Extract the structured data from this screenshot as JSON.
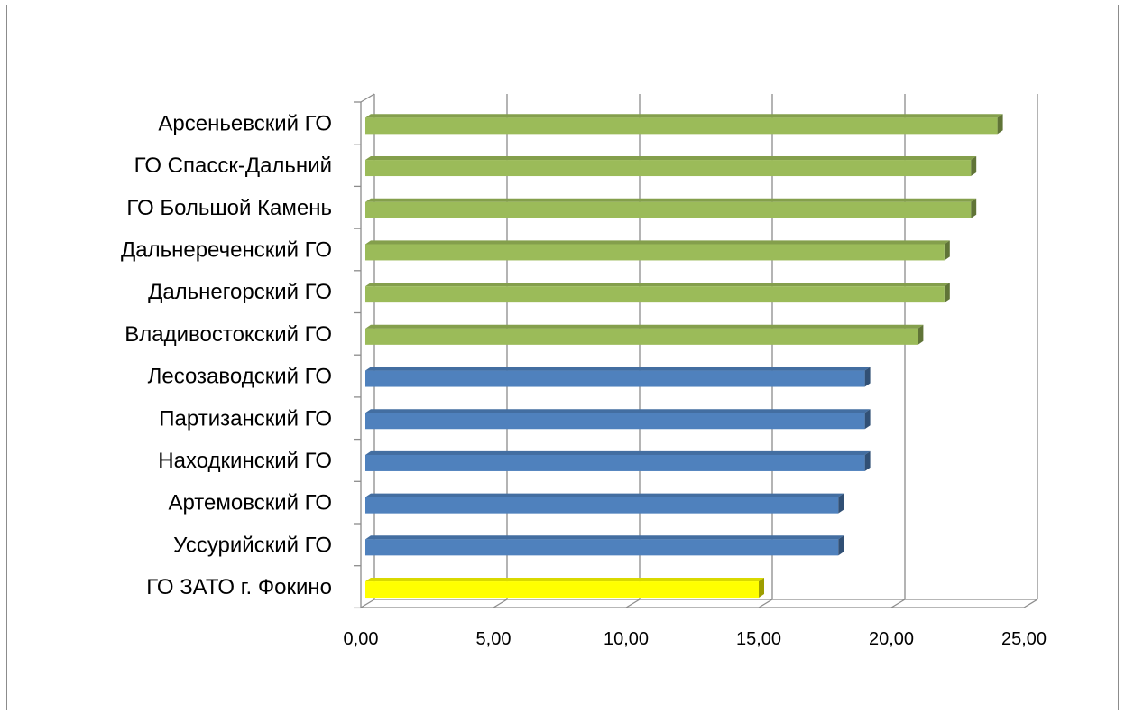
{
  "chart_data": {
    "type": "bar",
    "orientation": "horizontal",
    "title": "",
    "xlabel": "",
    "ylabel": "",
    "xlim": [
      0,
      25
    ],
    "grid": true,
    "legend": "none",
    "style": "3d-bar",
    "categories": [
      "Арсеньевский ГО",
      "ГО Спасск-Дальний",
      "ГО Большой Камень",
      "Дальнереченский ГО",
      "Дальнегорский ГО",
      "Владивостокский ГО",
      "Лесозаводский ГО",
      "Партизанский ГО",
      "Находкинский ГО",
      "Артемовский ГО",
      "Уссурийский ГО",
      "ГО ЗАТО г. Фокино"
    ],
    "values": [
      24,
      23,
      23,
      22,
      22,
      21,
      19,
      19,
      19,
      18,
      18,
      15
    ],
    "bar_colors": [
      "#9bbb59",
      "#9bbb59",
      "#9bbb59",
      "#9bbb59",
      "#9bbb59",
      "#9bbb59",
      "#4f81bd",
      "#4f81bd",
      "#4f81bd",
      "#4f81bd",
      "#4f81bd",
      "#ffff00"
    ],
    "x_ticks": [
      "0,00",
      "5,00",
      "10,00",
      "15,00",
      "20,00",
      "25,00"
    ],
    "x_tick_values": [
      0,
      5,
      10,
      15,
      20,
      25
    ]
  }
}
